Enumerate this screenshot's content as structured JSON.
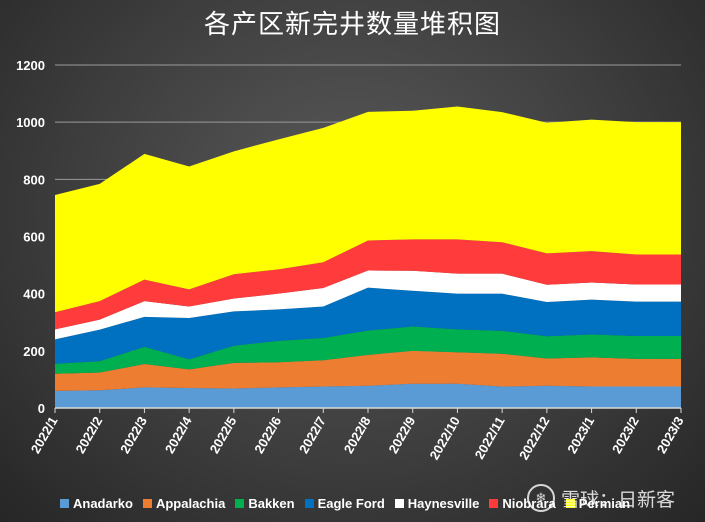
{
  "chart_data": {
    "type": "area",
    "stacked": true,
    "title": "各产区新完井数量堆积图",
    "categories": [
      "2022/1",
      "2022/2",
      "2022/3",
      "2022/4",
      "2022/5",
      "2022/6",
      "2022/7",
      "2022/8",
      "2022/9",
      "2022/10",
      "2022/11",
      "2022/12",
      "2023/1",
      "2023/2",
      "2023/3"
    ],
    "ylim": [
      0,
      1200
    ],
    "yticks": [
      0,
      200,
      400,
      600,
      800,
      1000,
      1200
    ],
    "grid": true,
    "legend_position": "bottom",
    "series": [
      {
        "name": "Anadarko",
        "color": "#5b9bd5",
        "values": [
          60,
          62,
          72,
          70,
          68,
          72,
          75,
          78,
          85,
          85,
          75,
          78,
          75,
          75,
          75
        ]
      },
      {
        "name": "Appalachia",
        "color": "#ed7d31",
        "values": [
          60,
          62,
          82,
          65,
          90,
          88,
          92,
          108,
          115,
          110,
          115,
          95,
          102,
          97,
          97
        ]
      },
      {
        "name": "Bakken",
        "color": "#00b050",
        "values": [
          35,
          40,
          60,
          35,
          60,
          75,
          78,
          85,
          85,
          80,
          80,
          78,
          80,
          80,
          80
        ]
      },
      {
        "name": "Eagle Ford",
        "color": "#0070c0",
        "values": [
          85,
          110,
          105,
          145,
          120,
          110,
          110,
          150,
          125,
          125,
          130,
          120,
          122,
          120,
          120
        ]
      },
      {
        "name": "Haynesville",
        "color": "#ffffff",
        "values": [
          35,
          35,
          55,
          40,
          45,
          55,
          65,
          60,
          70,
          70,
          70,
          60,
          60,
          60,
          60
        ]
      },
      {
        "name": "Niobrara",
        "color": "#ff3b3b",
        "values": [
          60,
          65,
          75,
          60,
          85,
          85,
          90,
          105,
          110,
          120,
          110,
          110,
          110,
          105,
          105
        ]
      },
      {
        "name": "Permian",
        "color": "#ffff00",
        "values": [
          410,
          410,
          440,
          430,
          430,
          455,
          470,
          450,
          450,
          465,
          455,
          457,
          460,
          463,
          463
        ]
      }
    ]
  },
  "watermark": {
    "text": "雪球：日新客",
    "logo": "❄"
  },
  "colors": {
    "grid": "#9a9a9a",
    "axis_text": "#ffffff"
  }
}
